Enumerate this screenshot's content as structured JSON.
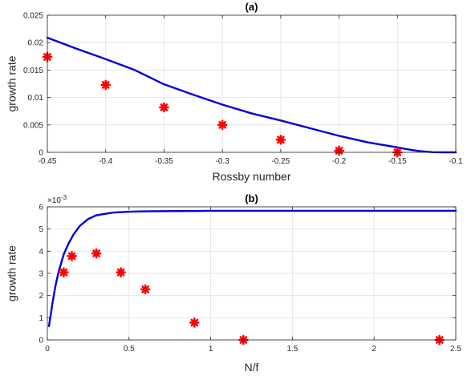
{
  "chart_data": [
    {
      "type": "line",
      "title": "(a)",
      "xlabel": "Rossby number",
      "ylabel": "growth rate",
      "xlim": [
        -0.45,
        -0.1
      ],
      "ylim": [
        0,
        0.025
      ],
      "xticks": [
        -0.45,
        -0.4,
        -0.35,
        -0.3,
        -0.25,
        -0.2,
        -0.15,
        -0.1
      ],
      "xtick_labels": [
        "-0.45",
        "-0.4",
        "-0.35",
        "-0.3",
        "-0.25",
        "-0.2",
        "-0.15",
        "-0.1"
      ],
      "yticks": [
        0,
        0.005,
        0.01,
        0.015,
        0.02,
        0.025
      ],
      "ytick_labels": [
        "0",
        "0.005",
        "0.01",
        "0.015",
        "0.02",
        "0.025"
      ],
      "grid": true,
      "series": [
        {
          "kind": "line",
          "color": "#0000dd",
          "x": [
            -0.45,
            -0.425,
            -0.4,
            -0.375,
            -0.35,
            -0.325,
            -0.3,
            -0.275,
            -0.25,
            -0.225,
            -0.2,
            -0.175,
            -0.15,
            -0.14,
            -0.13,
            -0.12,
            -0.11,
            -0.1
          ],
          "y": [
            0.0209,
            0.0189,
            0.017,
            0.015,
            0.0124,
            0.0105,
            0.0087,
            0.0071,
            0.0058,
            0.0044,
            0.003,
            0.0018,
            0.0009,
            0.0005,
            0.0002,
            3e-05,
            0.0,
            0.0
          ]
        },
        {
          "kind": "scatter",
          "color": "#ff0000",
          "marker": "asterisk",
          "x": [
            -0.45,
            -0.4,
            -0.35,
            -0.3,
            -0.25,
            -0.2,
            -0.15
          ],
          "y": [
            0.0174,
            0.0123,
            0.0082,
            0.005,
            0.0023,
            0.0003,
            0.0
          ]
        }
      ]
    },
    {
      "type": "line",
      "title": "(b)",
      "xlabel": "N/f",
      "ylabel": "growth rate",
      "exponent_label": "×10",
      "exponent_power": "-3",
      "xlim": [
        0,
        2.5
      ],
      "ylim": [
        0,
        6
      ],
      "xticks": [
        0,
        0.5,
        1,
        1.5,
        2,
        2.5
      ],
      "xtick_labels": [
        "0",
        "0.5",
        "1",
        "1.5",
        "2",
        "2.5"
      ],
      "yticks": [
        0,
        1,
        2,
        3,
        4,
        5,
        6
      ],
      "ytick_labels": [
        "0",
        "1",
        "2",
        "3",
        "4",
        "5",
        "6"
      ],
      "grid": true,
      "series": [
        {
          "kind": "line",
          "color": "#0000dd",
          "x": [
            0.01,
            0.02,
            0.03,
            0.05,
            0.07,
            0.1,
            0.13,
            0.16,
            0.2,
            0.25,
            0.3,
            0.4,
            0.5,
            0.6,
            0.8,
            1.0,
            1.5,
            2.0,
            2.5
          ],
          "y": [
            0.62,
            1.1,
            1.6,
            2.45,
            3.1,
            3.85,
            4.35,
            4.75,
            5.15,
            5.45,
            5.62,
            5.74,
            5.78,
            5.8,
            5.81,
            5.82,
            5.82,
            5.82,
            5.82
          ]
        },
        {
          "kind": "scatter",
          "color": "#ff0000",
          "marker": "asterisk",
          "x": [
            0.1,
            0.15,
            0.3,
            0.45,
            0.6,
            0.9,
            1.2,
            2.4
          ],
          "y": [
            3.05,
            3.78,
            3.9,
            3.05,
            2.28,
            0.78,
            0.0,
            0.0
          ]
        }
      ]
    }
  ]
}
